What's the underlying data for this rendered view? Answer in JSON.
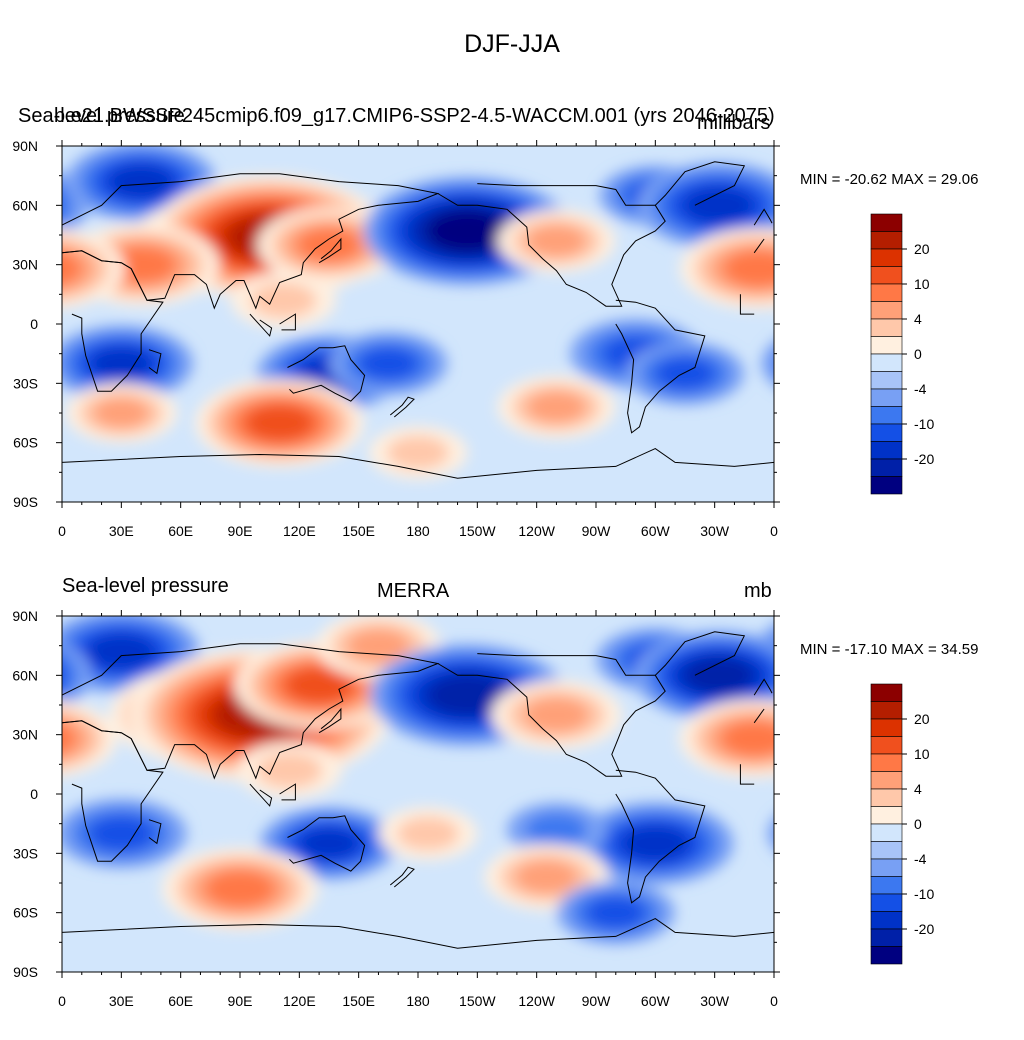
{
  "title": "DJF-JJA",
  "colorbar": {
    "colors": [
      "#000080",
      "#0020a8",
      "#0032c8",
      "#1450e6",
      "#3c78f0",
      "#78a0f4",
      "#a8c4f8",
      "#d2e6fc",
      "#fff0e0",
      "#ffc8aa",
      "#ffa078",
      "#ff7846",
      "#f0501e",
      "#dc3200",
      "#b41e00",
      "#8c0000"
    ],
    "tick_labels": [
      "20",
      "10",
      "4",
      "0",
      "-4",
      "-10",
      "-20"
    ]
  },
  "map": {
    "lat_labels": [
      "90N",
      "60N",
      "30N",
      "0",
      "30S",
      "60S",
      "90S"
    ],
    "lon_labels": [
      "0",
      "30E",
      "60E",
      "90E",
      "120E",
      "150E",
      "180",
      "150W",
      "120W",
      "90W",
      "60W",
      "30W",
      "0"
    ]
  },
  "panels": [
    {
      "left_title": "Sea-level pressure",
      "center_title": "b.e21.BWSSP245cmip6.f09_g17.CMIP6-SSP2-4.5-WACCM.001 (yrs 2046-2075)",
      "right_title": "millibars",
      "min_max": "MIN = -20.62 MAX =  29.06",
      "anomalies": [
        {
          "lon": 40,
          "lat": 72,
          "v": -11
        },
        {
          "lon": 80,
          "lat": 40,
          "v": 16
        },
        {
          "lon": 105,
          "lat": 44,
          "v": 25
        },
        {
          "lon": 40,
          "lat": 30,
          "v": 12
        },
        {
          "lon": 135,
          "lat": 40,
          "v": 10
        },
        {
          "lon": 112,
          "lat": 12,
          "v": 4
        },
        {
          "lon": 205,
          "lat": 47,
          "v": -20
        },
        {
          "lon": 250,
          "lat": 42,
          "v": 6
        },
        {
          "lon": 300,
          "lat": 65,
          "v": -5
        },
        {
          "lon": 332,
          "lat": 60,
          "v": -13
        },
        {
          "lon": 352,
          "lat": 28,
          "v": 12
        },
        {
          "lon": 30,
          "lat": -20,
          "v": -10
        },
        {
          "lon": 135,
          "lat": -25,
          "v": -10
        },
        {
          "lon": 165,
          "lat": -20,
          "v": -6
        },
        {
          "lon": 290,
          "lat": -15,
          "v": -8
        },
        {
          "lon": 315,
          "lat": -25,
          "v": -6
        },
        {
          "lon": 110,
          "lat": -50,
          "v": 14
        },
        {
          "lon": 250,
          "lat": -42,
          "v": 6
        },
        {
          "lon": 30,
          "lat": -45,
          "v": 5
        },
        {
          "lon": 180,
          "lat": -65,
          "v": 3
        }
      ]
    },
    {
      "left_title": "Sea-level pressure",
      "center_title": "MERRA",
      "right_title": "mb",
      "min_max": "MIN = -17.10 MAX =  34.59",
      "anomalies": [
        {
          "lon": 30,
          "lat": 72,
          "v": -12
        },
        {
          "lon": 70,
          "lat": 40,
          "v": 16
        },
        {
          "lon": 100,
          "lat": 40,
          "v": 28
        },
        {
          "lon": 130,
          "lat": 55,
          "v": 14
        },
        {
          "lon": 160,
          "lat": 75,
          "v": 7
        },
        {
          "lon": 115,
          "lat": 12,
          "v": 4
        },
        {
          "lon": 205,
          "lat": 50,
          "v": -18
        },
        {
          "lon": 250,
          "lat": 40,
          "v": 8
        },
        {
          "lon": 300,
          "lat": 68,
          "v": -6
        },
        {
          "lon": 332,
          "lat": 60,
          "v": -14
        },
        {
          "lon": 350,
          "lat": 28,
          "v": 11
        },
        {
          "lon": 30,
          "lat": -20,
          "v": -8
        },
        {
          "lon": 135,
          "lat": -25,
          "v": -9
        },
        {
          "lon": 300,
          "lat": -25,
          "v": -12
        },
        {
          "lon": 250,
          "lat": -18,
          "v": -3
        },
        {
          "lon": 90,
          "lat": -48,
          "v": 12
        },
        {
          "lon": 245,
          "lat": -42,
          "v": 7
        },
        {
          "lon": 185,
          "lat": -20,
          "v": 3
        },
        {
          "lon": 280,
          "lat": -60,
          "v": -6
        }
      ]
    }
  ]
}
